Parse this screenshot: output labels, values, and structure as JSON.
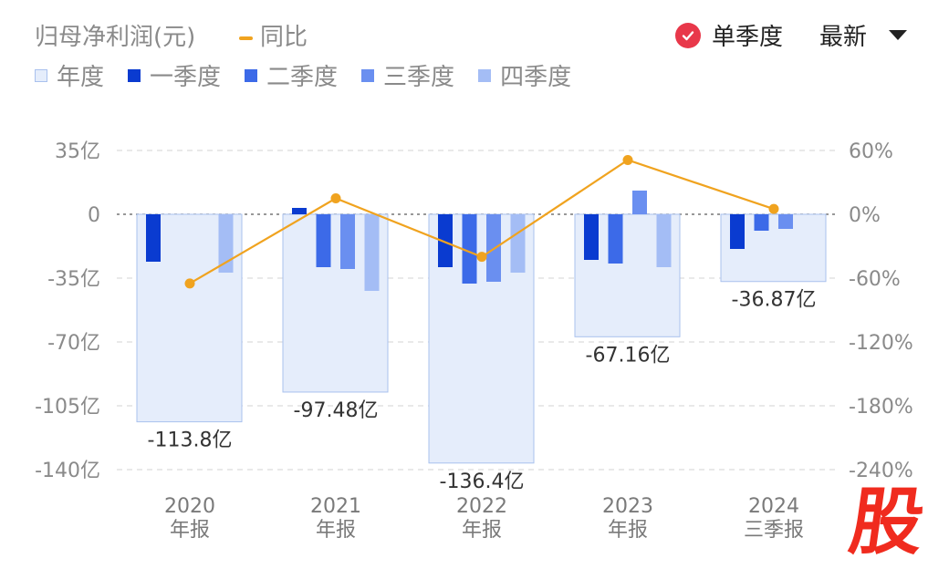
{
  "header": {
    "title": "归母净利润(元)",
    "yoy_label": "同比",
    "season_toggle_label": "单季度",
    "latest_label": "最新"
  },
  "legend": [
    {
      "label": "年度",
      "color": "#e5edfb",
      "border": "#a9c1ee"
    },
    {
      "label": "一季度",
      "color": "#0a3bd0"
    },
    {
      "label": "二季度",
      "color": "#3c6ae8"
    },
    {
      "label": "三季度",
      "color": "#6a8ff0"
    },
    {
      "label": "四季度",
      "color": "#a4bdf5"
    }
  ],
  "chart_data": {
    "type": "bar",
    "categories": [
      "2020年报",
      "2021年报",
      "2022年报",
      "2023年报",
      "2024三季报"
    ],
    "category_lines": [
      [
        "2020",
        "年报"
      ],
      [
        "2021",
        "年报"
      ],
      [
        "2022",
        "年报"
      ],
      [
        "2023",
        "年报"
      ],
      [
        "2024",
        "三季报"
      ]
    ],
    "annual": [
      -113.8,
      -97.48,
      -136.4,
      -67.16,
      -36.87
    ],
    "annual_labels": [
      "-113.8亿",
      "-97.48亿",
      "-136.4亿",
      "-67.16亿",
      "-36.87亿"
    ],
    "series": [
      {
        "name": "一季度",
        "values": [
          -26,
          3.5,
          -29,
          -25,
          -19
        ]
      },
      {
        "name": "二季度",
        "values": [
          null,
          -29,
          -38,
          -27,
          -9
        ]
      },
      {
        "name": "三季度",
        "values": [
          null,
          -30,
          -37,
          13,
          -8
        ]
      },
      {
        "name": "四季度",
        "values": [
          -32,
          -42,
          -32,
          -29,
          null
        ]
      }
    ],
    "yoy": {
      "name": "同比",
      "unit": "%",
      "values": [
        -65,
        15,
        -40,
        51,
        5
      ]
    },
    "left_axis": {
      "unit": "亿",
      "ylim": [
        -140,
        35
      ],
      "ticks": [
        "35亿",
        "0",
        "-35亿",
        "-70亿",
        "-105亿",
        "-140亿"
      ],
      "tick_values": [
        35,
        0,
        -35,
        -70,
        -105,
        -140
      ]
    },
    "right_axis": {
      "unit": "%",
      "ylim": [
        -240,
        60
      ],
      "ticks": [
        "60%",
        "0%",
        "-60%",
        "-120%",
        "-180%",
        "-240%"
      ],
      "tick_values": [
        60,
        0,
        -60,
        -120,
        -180,
        -240
      ]
    },
    "grid": true
  },
  "colors": {
    "annual_fill": "#e5edfb",
    "annual_stroke": "#a9c1ee",
    "q1": "#0a3bd0",
    "q2": "#3c6ae8",
    "q3": "#6a8ff0",
    "q4": "#a4bdf5",
    "yoy_line": "#f0a31f",
    "check_badge": "#e8384a",
    "brand_red": "#f02b1e"
  },
  "brand": {
    "char": "股"
  }
}
